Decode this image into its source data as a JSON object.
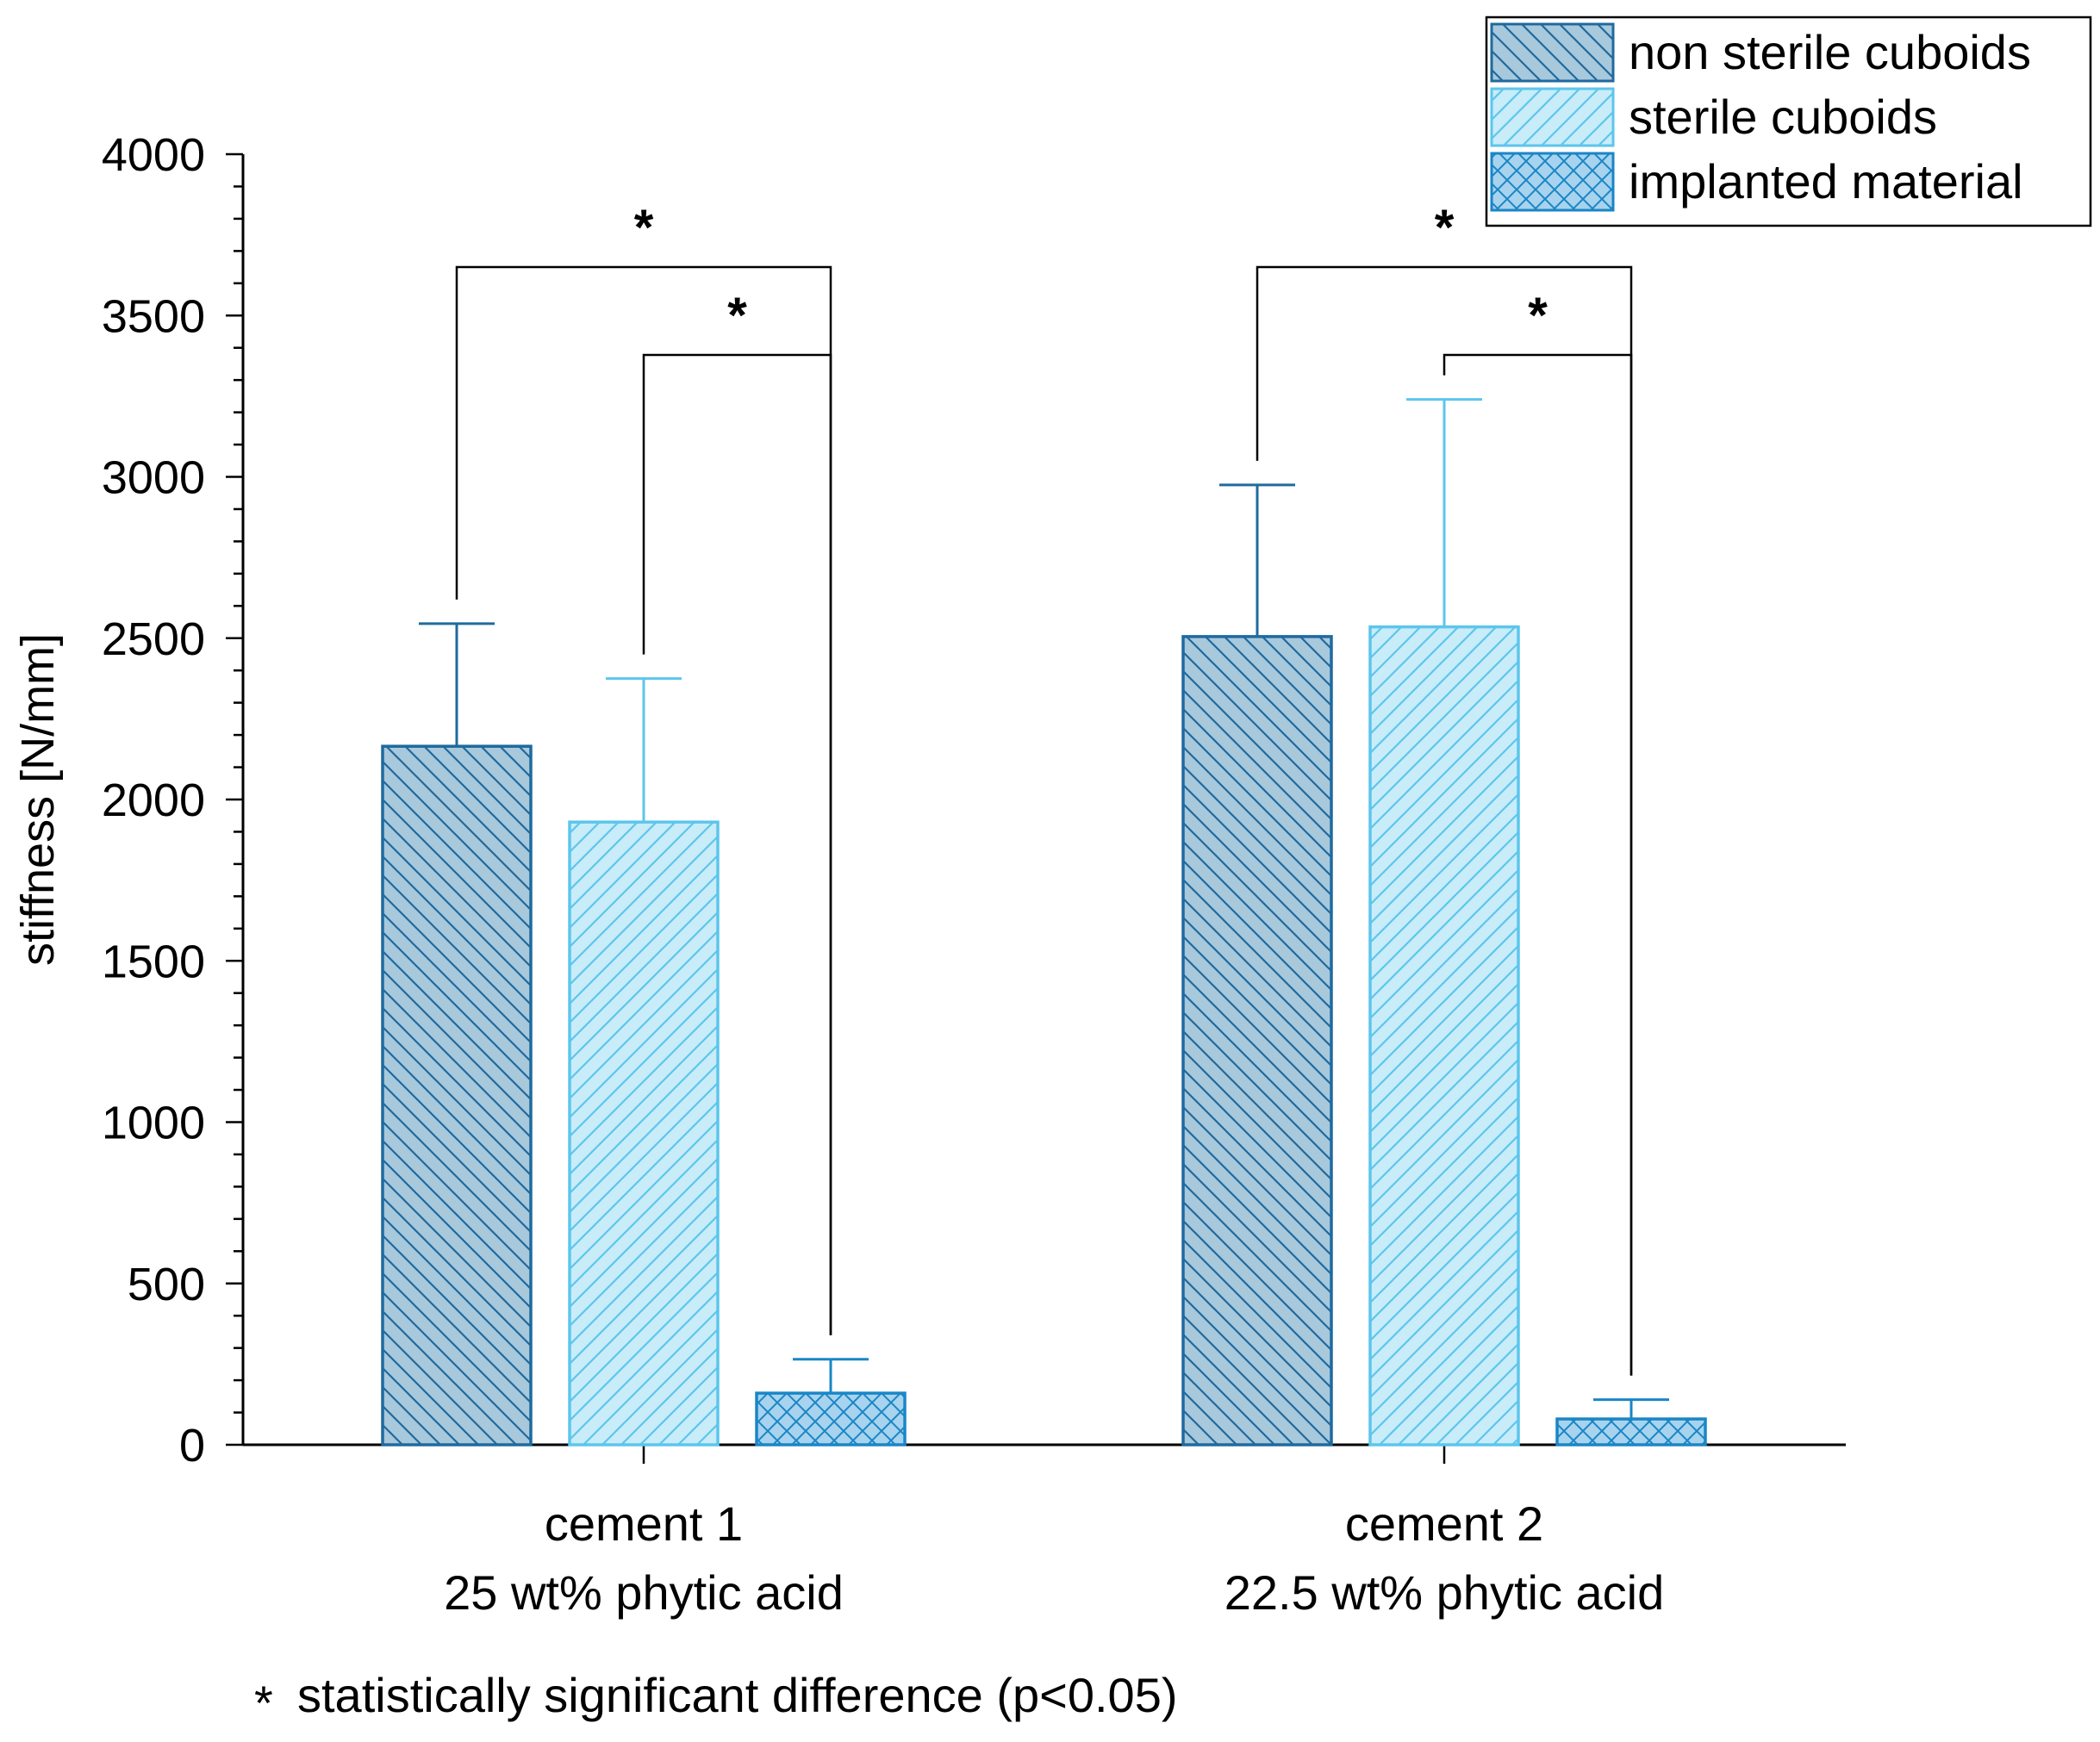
{
  "chart_data": {
    "type": "bar",
    "ylabel": "stiffness [N/mm]",
    "xlabel": "",
    "ylim": [
      0,
      4000
    ],
    "y_major_ticks": [
      0,
      500,
      1000,
      1500,
      2000,
      2500,
      3000,
      3500,
      4000
    ],
    "y_minor_step": 100,
    "grid": false,
    "legend_position": "top-right",
    "categories": [
      {
        "line1": "cement 1",
        "line2": "25 wt% phytic acid"
      },
      {
        "line1": "cement 2",
        "line2": "22.5 wt% phytic acid"
      }
    ],
    "series": [
      {
        "name": "non sterile cuboids",
        "values": [
          2165,
          2505
        ],
        "errors": [
          380,
          470
        ],
        "fill": "#a8c8dc",
        "stroke": "#1f6a9e",
        "pattern": "diagonal-down"
      },
      {
        "name": "sterile cuboids",
        "values": [
          1930,
          2535
        ],
        "errors": [
          445,
          705
        ],
        "fill": "#c9ecf9",
        "stroke": "#5cc6ec",
        "pattern": "diagonal-up"
      },
      {
        "name": "implanted material",
        "values": [
          160,
          80
        ],
        "errors": [
          105,
          60
        ],
        "fill": "#a7d3ee",
        "stroke": "#1a86c6",
        "pattern": "crosshatch"
      }
    ],
    "significance": [
      {
        "category": 0,
        "from_series": 0,
        "to_series": 2,
        "level": "outer",
        "label": "*"
      },
      {
        "category": 0,
        "from_series": 1,
        "to_series": 2,
        "level": "inner",
        "label": "*"
      },
      {
        "category": 1,
        "from_series": 0,
        "to_series": 2,
        "level": "outer",
        "label": "*"
      },
      {
        "category": 1,
        "from_series": 1,
        "to_series": 2,
        "level": "inner",
        "label": "*"
      }
    ],
    "footnote": {
      "symbol": "*",
      "text": "statistically significant difference (p<0.05)"
    }
  }
}
